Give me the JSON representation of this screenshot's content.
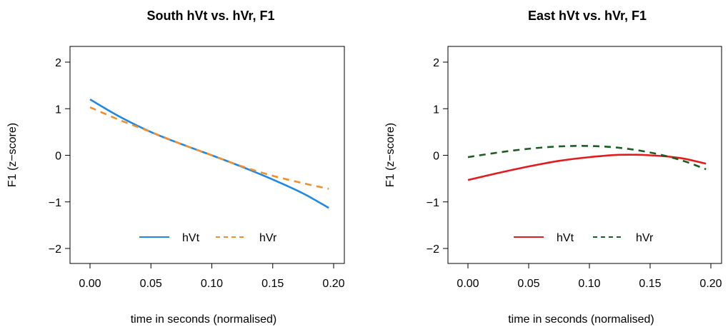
{
  "chart_data": [
    {
      "type": "line",
      "title": "South hVt vs. hVr, F1",
      "xlabel": "time in seconds (normalised)",
      "ylabel": "F1 (z−score)",
      "xlim": [
        0,
        0.2
      ],
      "ylim": [
        -2,
        2
      ],
      "xticks": [
        "0.00",
        "0.05",
        "0.10",
        "0.15",
        "0.20"
      ],
      "yticks": [
        "−2",
        "−1",
        "0",
        "1",
        "2"
      ],
      "legend_position": "bottom",
      "series": [
        {
          "name": "hVt",
          "color": "#1e88e5",
          "dash": "solid",
          "x": [
            0,
            0.025,
            0.05,
            0.075,
            0.1,
            0.125,
            0.15,
            0.175,
            0.196
          ],
          "y": [
            1.2,
            0.82,
            0.5,
            0.24,
            0.0,
            -0.25,
            -0.52,
            -0.82,
            -1.13
          ]
        },
        {
          "name": "hVr",
          "color": "#f28e2b",
          "dash": "dashed",
          "x": [
            0,
            0.025,
            0.05,
            0.075,
            0.1,
            0.125,
            0.15,
            0.175,
            0.196
          ],
          "y": [
            1.03,
            0.75,
            0.5,
            0.24,
            0.0,
            -0.24,
            -0.44,
            -0.6,
            -0.72
          ]
        }
      ]
    },
    {
      "type": "line",
      "title": "East hVt vs. hVr, F1",
      "xlabel": "time in seconds (normalised)",
      "ylabel": "F1 (z−score)",
      "xlim": [
        0,
        0.2
      ],
      "ylim": [
        -2,
        2
      ],
      "xticks": [
        "0.00",
        "0.05",
        "0.10",
        "0.15",
        "0.20"
      ],
      "yticks": [
        "−2",
        "−1",
        "0",
        "1",
        "2"
      ],
      "legend_position": "bottom",
      "series": [
        {
          "name": "hVt",
          "color": "#e41a1c",
          "dash": "solid",
          "x": [
            0,
            0.025,
            0.05,
            0.075,
            0.1,
            0.125,
            0.15,
            0.175,
            0.196
          ],
          "y": [
            -0.53,
            -0.38,
            -0.24,
            -0.12,
            -0.04,
            0.01,
            0.0,
            -0.06,
            -0.18
          ]
        },
        {
          "name": "hVr",
          "color": "#1b5e20",
          "dash": "dashed",
          "x": [
            0,
            0.025,
            0.05,
            0.075,
            0.1,
            0.125,
            0.15,
            0.175,
            0.196
          ],
          "y": [
            -0.04,
            0.06,
            0.14,
            0.19,
            0.2,
            0.16,
            0.06,
            -0.1,
            -0.3
          ]
        }
      ]
    }
  ]
}
